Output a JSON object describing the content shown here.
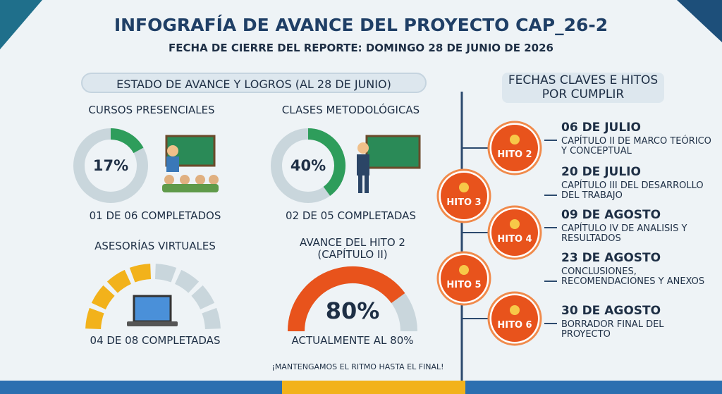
{
  "header": {
    "title": "INFOGRAFÍA DE AVANCE DEL PROYECTO CAP_26-2",
    "subtitle": "FECHA DE CIERRE DEL REPORTE: DOMINGO 28 DE JUNIO DE 2026"
  },
  "progress": {
    "title": "ESTADO DE AVANCE Y LOGROS (AL 28 DE JUNIO)",
    "items": [
      {
        "type": "donut",
        "label": "CURSOS PRESENCIALES",
        "value": 17,
        "value_label": "17%",
        "caption": "01 DE 06 COMPLETADOS",
        "color": "#2e9d5b"
      },
      {
        "type": "donut",
        "label": "CLASES METODOLÓGICAS",
        "value": 40,
        "value_label": "40%",
        "caption": "02 DE 05 COMPLETADAS",
        "color": "#2e9d5b"
      },
      {
        "type": "segments",
        "label": "ASESORÍAS VIRTUALES",
        "completed": 4,
        "total": 8,
        "caption": "04 DE 08 COMPLETADAS",
        "color": "#f2b21b"
      },
      {
        "type": "gauge",
        "label": "AVANCE DEL HITO 2 (CAPÍTULO II)",
        "value": 80,
        "value_label": "80%",
        "caption": "ACTUALMENTE AL 80%",
        "color": "#e8531c"
      }
    ]
  },
  "footer": "¡MANTENGAMOS EL RITMO HASTA EL FINAL!",
  "timeline": {
    "title": "FECHAS CLAVES E HITOS POR CUMPLIR",
    "milestones": [
      "HITO 2",
      "HITO 3",
      "HITO 4",
      "HITO 5",
      "HITO 6"
    ],
    "events": [
      {
        "date": "06 DE JULIO",
        "description": "CAPÍTULO II DE MARCO TEÓRICO Y CONCEPTUAL"
      },
      {
        "date": "20 DE JULIO",
        "description": "CAPÍTULO III DEL DESARROLLO DEL TRABAJO"
      },
      {
        "date": "09 DE AGOSTO",
        "description": "CAPÍTULO IV DE ANALISIS Y RESULTADOS"
      },
      {
        "date": "23 DE AGOSTO",
        "description": "CONCLUSIONES, RECOMENDACIONES Y ANEXOS"
      },
      {
        "date": "30 DE AGOSTO",
        "description": "BORRADOR FINAL DEL PROYECTO"
      }
    ]
  }
}
